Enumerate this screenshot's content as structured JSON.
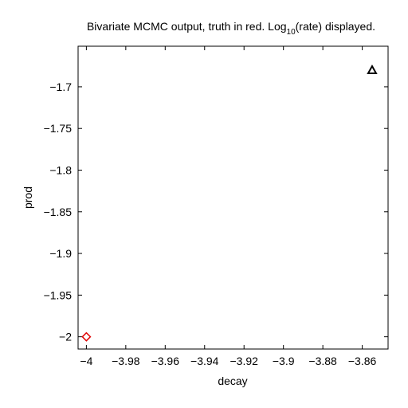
{
  "chart_data": {
    "type": "scatter",
    "title_main": "Bivariate MCMC output, truth in red. Log",
    "title_sub": "10",
    "title_end": "(rate) displayed.",
    "xlabel": "decay",
    "ylabel": "prod",
    "xlim": [
      -4.0042,
      -3.8469
    ],
    "ylim": [
      -2.0147,
      -1.6513
    ],
    "xticks": [
      -4,
      -3.98,
      -3.96,
      -3.94,
      -3.92,
      -3.9,
      -3.88,
      -3.86
    ],
    "xtick_labels": [
      "−4",
      "−3.98",
      "−3.96",
      "−3.94",
      "−3.92",
      "−3.9",
      "−3.88",
      "−3.86"
    ],
    "yticks": [
      -2,
      -1.95,
      -1.9,
      -1.85,
      -1.8,
      -1.75,
      -1.7
    ],
    "ytick_labels": [
      "−2",
      "−1.95",
      "−1.9",
      "−1.85",
      "−1.8",
      "−1.75",
      "−1.7"
    ],
    "grid": false,
    "series": [
      {
        "color": "#000000",
        "marker": "triangle",
        "points": [
          [
            -3.855,
            -1.68
          ]
        ]
      },
      {
        "color": "#e00000",
        "marker": "diamond",
        "points": [
          [
            -4.0,
            -2.0
          ]
        ]
      }
    ]
  }
}
